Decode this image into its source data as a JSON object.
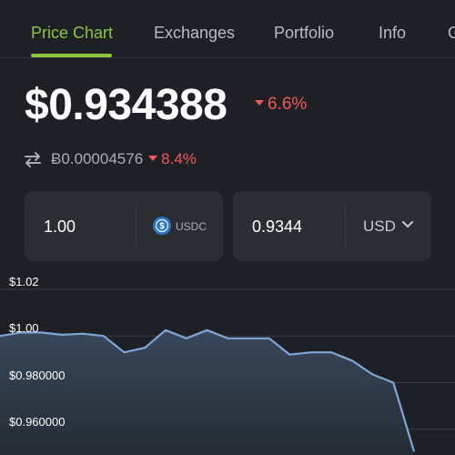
{
  "tabs": [
    {
      "label": "Price Chart",
      "active": true
    },
    {
      "label": "Exchanges",
      "active": false
    },
    {
      "label": "Portfolio",
      "active": false
    },
    {
      "label": "Info",
      "active": false
    },
    {
      "label": "G",
      "active": false
    }
  ],
  "price": {
    "value": "$0.934388",
    "change": "6.6%",
    "change_direction": "down"
  },
  "btc": {
    "icon": "swap-arrows-icon",
    "value": "Ƀ0.00004576",
    "change": "8.4%",
    "change_direction": "down"
  },
  "converter": {
    "amount": "1.00",
    "currency": "USDC",
    "currency_icon": "usdc-icon",
    "converted": "0.9344",
    "fiat": "USD"
  },
  "colors": {
    "background": "#1e2025",
    "accent": "#8dc63f",
    "negative": "#f0595a",
    "line": "#7fa6d8"
  },
  "chart_data": {
    "type": "area",
    "ytick_labels": [
      "$1.02",
      "$1.00",
      "$0.980000",
      "$0.960000"
    ],
    "ytick_values": [
      1.02,
      1.0,
      0.98,
      0.96
    ],
    "ylim": [
      0.949,
      1.027
    ],
    "grid": true,
    "values": [
      1.0,
      1.0015,
      1.0015,
      1.0005,
      1.001,
      1.0,
      0.993,
      0.995,
      1.0025,
      0.999,
      1.0025,
      0.999,
      0.999,
      0.999,
      0.992,
      0.993,
      0.993,
      0.9895,
      0.9835,
      0.98,
      0.9505
    ]
  }
}
